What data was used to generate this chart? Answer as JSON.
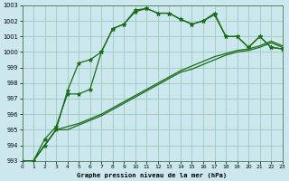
{
  "title": "Graphe pression niveau de la mer (hPa)",
  "background_color": "#cce8ee",
  "grid_color": "#99ccbb",
  "line_color": "#1a6b1a",
  "series": [
    {
      "x": [
        0,
        1,
        2,
        3,
        4,
        5,
        6,
        7,
        8,
        9,
        10,
        11,
        12,
        13,
        14,
        15,
        16,
        17,
        18,
        19,
        20,
        21,
        22,
        23
      ],
      "y": [
        993,
        993,
        994.4,
        995.2,
        997.3,
        997.3,
        997.6,
        1000.0,
        1001.5,
        1001.8,
        1002.6,
        1002.8,
        1002.5,
        1002.5,
        1002.1,
        1001.8,
        1002.0,
        1002.4,
        1001.0,
        1001.0,
        1000.3,
        1001.0,
        1000.3,
        1000.2
      ],
      "has_markers": true
    },
    {
      "x": [
        0,
        1,
        2,
        3,
        4,
        5,
        6,
        7,
        8,
        9,
        10,
        11,
        12,
        13,
        14,
        15,
        16,
        17,
        18,
        19,
        20,
        21,
        22,
        23
      ],
      "y": [
        993,
        993,
        994.0,
        995.0,
        997.5,
        999.3,
        999.5,
        1000.0,
        1001.5,
        1001.8,
        1002.7,
        1002.8,
        1002.5,
        1002.5,
        1002.1,
        1001.8,
        1002.0,
        1002.5,
        1001.0,
        1001.0,
        1000.3,
        1001.0,
        1000.3,
        1000.2
      ],
      "has_markers": true
    },
    {
      "x": [
        0,
        1,
        2,
        3,
        4,
        5,
        6,
        7,
        8,
        9,
        10,
        11,
        12,
        13,
        14,
        15,
        16,
        17,
        18,
        19,
        20,
        21,
        22,
        23
      ],
      "y": [
        993,
        993,
        994.0,
        995.0,
        995.2,
        995.4,
        995.7,
        996.0,
        996.4,
        996.8,
        997.2,
        997.6,
        998.0,
        998.4,
        998.8,
        999.1,
        999.4,
        999.7,
        999.9,
        1000.1,
        1000.2,
        1000.4,
        1000.7,
        1000.4
      ],
      "has_markers": false
    },
    {
      "x": [
        0,
        1,
        2,
        3,
        4,
        5,
        6,
        7,
        8,
        9,
        10,
        11,
        12,
        13,
        14,
        15,
        16,
        17,
        18,
        19,
        20,
        21,
        22,
        23
      ],
      "y": [
        993,
        993,
        994.0,
        995.0,
        995.0,
        995.3,
        995.6,
        995.9,
        996.3,
        996.7,
        997.1,
        997.5,
        997.9,
        998.3,
        998.7,
        998.9,
        999.2,
        999.5,
        999.8,
        1000.0,
        1000.1,
        1000.3,
        1000.6,
        1000.3
      ],
      "has_markers": false
    }
  ],
  "xlim": [
    0,
    23
  ],
  "ylim": [
    993,
    1003
  ],
  "yticks": [
    993,
    994,
    995,
    996,
    997,
    998,
    999,
    1000,
    1001,
    1002,
    1003
  ],
  "xticks": [
    0,
    1,
    2,
    3,
    4,
    5,
    6,
    7,
    8,
    9,
    10,
    11,
    12,
    13,
    14,
    15,
    16,
    17,
    18,
    19,
    20,
    21,
    22,
    23
  ],
  "marker": "*",
  "marker_size": 3.5,
  "line_width": 0.9
}
